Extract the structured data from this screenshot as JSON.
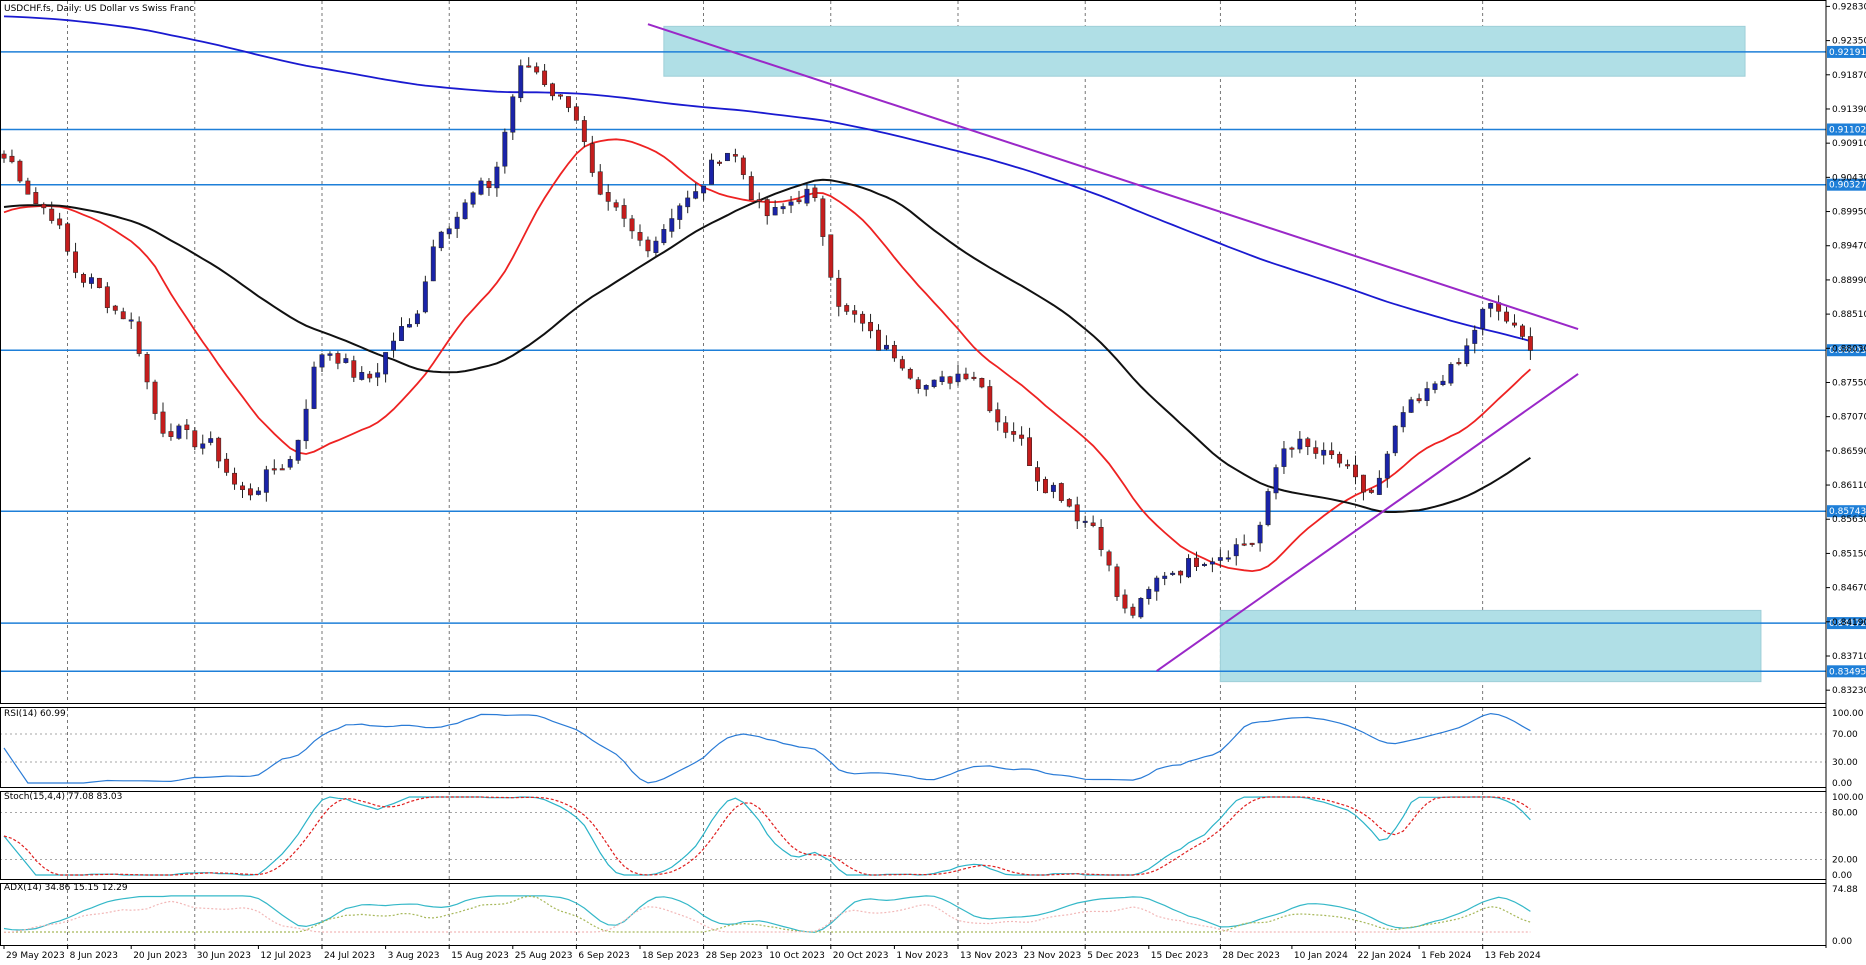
{
  "title": "USDCHF.fs, Daily:  US Dollar vs Swiss Franc",
  "colors": {
    "bull": "#1a23a8",
    "bear": "#c41d1d",
    "ma_fast": "#ee2222",
    "ma_mid": "#111111",
    "ma_slow": "#1a1ad0",
    "level": "#1e7fd8",
    "zone": "#b0dfe6",
    "trend": "#9a28c8",
    "rsi": "#2a7bd6",
    "stoch_main": "#2bb3c8",
    "stoch_signal": "#e02020",
    "adx_main": "#35b8c8",
    "adx_plus": "#a7b85a",
    "adx_minus": "#f2b8b8"
  },
  "price_axis": {
    "ticks": [
      "0.92830",
      "0.92350",
      "0.91870",
      "0.91390",
      "0.90910",
      "0.90430",
      "0.89950",
      "0.89470",
      "0.88990",
      "0.88510",
      "0.88030",
      "0.87550",
      "0.87070",
      "0.86590",
      "0.86110",
      "0.85630",
      "0.85150",
      "0.84670",
      "0.84190",
      "0.83710",
      "0.83230"
    ],
    "level_tags": [
      "0.92191",
      "0.91102",
      "0.90327",
      "0.88003",
      "0.85743",
      "0.84172",
      "0.83495"
    ]
  },
  "date_axis": [
    "29 May 2023",
    "8 Jun 2023",
    "20 Jun 2023",
    "30 Jun 2023",
    "12 Jul 2023",
    "24 Jul 2023",
    "3 Aug 2023",
    "15 Aug 2023",
    "25 Aug 2023",
    "6 Sep 2023",
    "18 Sep 2023",
    "28 Sep 2023",
    "10 Oct 2023",
    "20 Oct 2023",
    "1 Nov 2023",
    "13 Nov 2023",
    "23 Nov 2023",
    "5 Dec 2023",
    "15 Dec 2023",
    "28 Dec 2023",
    "10 Jan 2024",
    "22 Jan 2024",
    "1 Feb 2024",
    "13 Feb 2024"
  ],
  "rsi": {
    "label": "RSI(14) 60.99",
    "ticks": [
      "100.00",
      "70.00",
      "30.00",
      "0.00"
    ]
  },
  "stoch": {
    "label": "Stoch(15,4,4) 77.08 83.03",
    "ticks": [
      "100.00",
      "80.00",
      "20.00",
      "0.00"
    ]
  },
  "adx": {
    "label": "ADX(14) 34.86 15.15 12.29",
    "ticks": [
      "74.88",
      "0.00"
    ]
  },
  "chart_data": {
    "type": "candlestick",
    "symbol": "USDCHF.fs",
    "timeframe": "Daily",
    "title": "USDCHF.fs, Daily:  US Dollar vs Swiss Franc",
    "y_range": [
      0.8305,
      0.9292
    ],
    "horizontal_levels": [
      0.92191,
      0.91102,
      0.90327,
      0.88003,
      0.85743,
      0.84172,
      0.83495
    ],
    "zones": [
      {
        "from_date": "21 Sep 2023",
        "to_date": "29 Mar 2024",
        "low": 0.9185,
        "high": 0.9255
      },
      {
        "from_date": "28 Dec 2023",
        "to_date": "2 Apr 2024",
        "low": 0.8335,
        "high": 0.8435
      }
    ],
    "trendlines": [
      {
        "from": [
          "19 Sep 2023",
          0.9258
        ],
        "to": [
          "29 Feb 2024",
          0.883
        ]
      },
      {
        "from": [
          "18 Dec 2023",
          0.835
        ],
        "to": [
          "29 Feb 2024",
          0.8767
        ]
      }
    ],
    "anchor_prices": [
      0.907,
      0.9,
      0.89,
      0.885,
      0.869,
      0.867,
      0.86,
      0.864,
      0.88,
      0.876,
      0.883,
      0.898,
      0.903,
      0.92,
      0.915,
      0.9,
      0.895,
      0.901,
      0.908,
      0.899,
      0.902,
      0.885,
      0.88,
      0.875,
      0.877,
      0.869,
      0.861,
      0.856,
      0.843,
      0.849,
      0.851,
      0.853,
      0.867,
      0.865,
      0.86,
      0.872,
      0.877,
      0.886,
      0.881
    ],
    "indicators": {
      "rsi": {
        "period": 14,
        "last": 60.99,
        "levels": [
          70,
          30
        ],
        "range": [
          0,
          100
        ]
      },
      "stochastic": {
        "params": [
          15,
          4,
          4
        ],
        "main": 77.08,
        "signal": 83.03,
        "levels": [
          80,
          20
        ],
        "range": [
          0,
          100
        ]
      },
      "adx": {
        "period": 14,
        "adx": 34.86,
        "plus_di": 15.15,
        "minus_di": 12.29,
        "max": 74.88
      }
    }
  }
}
